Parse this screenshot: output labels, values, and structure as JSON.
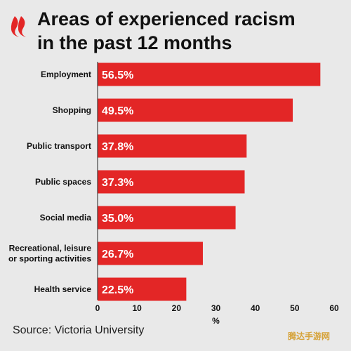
{
  "title": {
    "line1": "Areas of experienced racism",
    "line2": "in the past 12 months"
  },
  "source": "Source: Victoria University",
  "watermark": "腾达手游网",
  "colors": {
    "bar": "#e32626",
    "background": "#e9e9e9",
    "logo": "#e32626",
    "axis": "#222222"
  },
  "chart_data": {
    "type": "bar",
    "orientation": "horizontal",
    "categories": [
      "Employment",
      "Shopping",
      "Public transport",
      "Public spaces",
      "Social media",
      "Recreational, leisure or sporting activities",
      "Health service"
    ],
    "category_lines": [
      [
        "Employment"
      ],
      [
        "Shopping"
      ],
      [
        "Public transport"
      ],
      [
        "Public spaces"
      ],
      [
        "Social media"
      ],
      [
        "Recreational, leisure",
        "or sporting activities"
      ],
      [
        "Health service"
      ]
    ],
    "values": [
      56.5,
      49.5,
      37.8,
      37.3,
      35.0,
      26.7,
      22.5
    ],
    "value_labels": [
      "56.5%",
      "49.5%",
      "37.8%",
      "37.3%",
      "35.0%",
      "26.7%",
      "22.5%"
    ],
    "xticks": [
      0,
      10,
      20,
      30,
      40,
      50,
      60
    ],
    "xlabel": "%",
    "xlim": [
      0,
      60
    ],
    "grid": false,
    "legend": "none"
  }
}
